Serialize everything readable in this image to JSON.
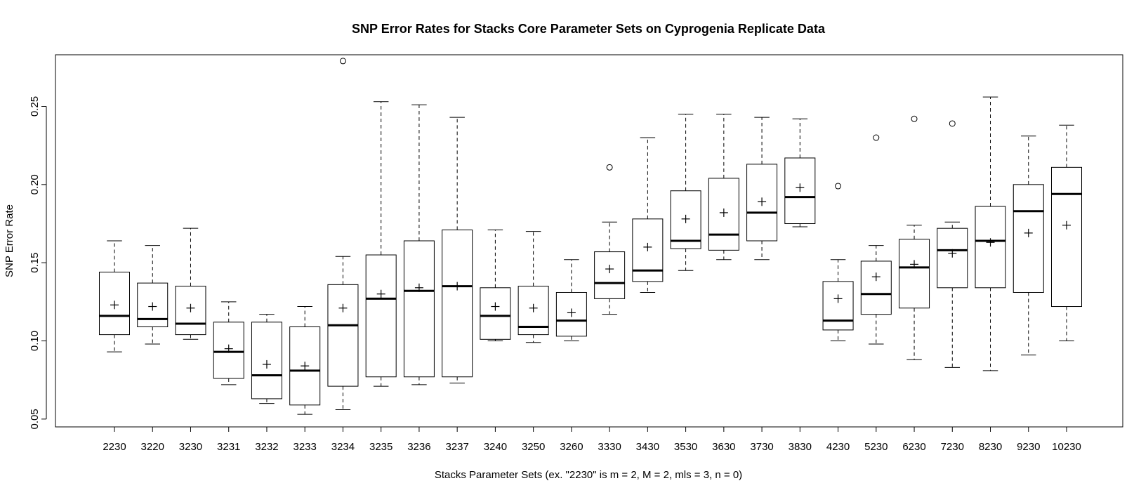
{
  "chart_data": {
    "type": "boxplot",
    "title": "SNP Error Rates for Stacks Core Parameter Sets on Cyprogenia Replicate Data",
    "xlabel": "Stacks Parameter Sets (ex. \"2230\" is m = 2, M = 2, mls = 3, n = 0)",
    "ylabel": "SNP Error Rate",
    "ylim": [
      0.045,
      0.283
    ],
    "yticks": [
      "0.05",
      "0.10",
      "0.15",
      "0.20",
      "0.25"
    ],
    "grid": false,
    "mean_marker": "+",
    "outlier_marker": "open circle",
    "categories": [
      "2230",
      "3220",
      "3230",
      "3231",
      "3232",
      "3233",
      "3234",
      "3235",
      "3236",
      "3237",
      "3240",
      "3250",
      "3260",
      "3330",
      "3430",
      "3530",
      "3630",
      "3730",
      "3830",
      "4230",
      "5230",
      "6230",
      "7230",
      "8230",
      "9230",
      "10230"
    ],
    "boxes": [
      {
        "label": "2230",
        "min": 0.093,
        "q1": 0.104,
        "median": 0.116,
        "q3": 0.144,
        "max": 0.164,
        "mean": 0.123,
        "outliers": []
      },
      {
        "label": "3220",
        "min": 0.098,
        "q1": 0.109,
        "median": 0.114,
        "q3": 0.137,
        "max": 0.161,
        "mean": 0.122,
        "outliers": []
      },
      {
        "label": "3230",
        "min": 0.101,
        "q1": 0.104,
        "median": 0.111,
        "q3": 0.135,
        "max": 0.172,
        "mean": 0.121,
        "outliers": []
      },
      {
        "label": "3231",
        "min": 0.072,
        "q1": 0.076,
        "median": 0.093,
        "q3": 0.112,
        "max": 0.125,
        "mean": 0.095,
        "outliers": []
      },
      {
        "label": "3232",
        "min": 0.06,
        "q1": 0.063,
        "median": 0.078,
        "q3": 0.112,
        "max": 0.117,
        "mean": 0.085,
        "outliers": []
      },
      {
        "label": "3233",
        "min": 0.053,
        "q1": 0.059,
        "median": 0.081,
        "q3": 0.109,
        "max": 0.122,
        "mean": 0.084,
        "outliers": []
      },
      {
        "label": "3234",
        "min": 0.056,
        "q1": 0.071,
        "median": 0.11,
        "q3": 0.136,
        "max": 0.154,
        "mean": 0.121,
        "outliers": [
          0.279
        ]
      },
      {
        "label": "3235",
        "min": 0.071,
        "q1": 0.077,
        "median": 0.127,
        "q3": 0.155,
        "max": 0.253,
        "mean": 0.13,
        "outliers": []
      },
      {
        "label": "3236",
        "min": 0.072,
        "q1": 0.077,
        "median": 0.132,
        "q3": 0.164,
        "max": 0.251,
        "mean": 0.134,
        "outliers": []
      },
      {
        "label": "3237",
        "min": 0.073,
        "q1": 0.077,
        "median": 0.135,
        "q3": 0.171,
        "max": 0.243,
        "mean": 0.135,
        "outliers": []
      },
      {
        "label": "3240",
        "min": 0.1,
        "q1": 0.101,
        "median": 0.116,
        "q3": 0.134,
        "max": 0.171,
        "mean": 0.122,
        "outliers": []
      },
      {
        "label": "3250",
        "min": 0.099,
        "q1": 0.104,
        "median": 0.109,
        "q3": 0.135,
        "max": 0.17,
        "mean": 0.121,
        "outliers": []
      },
      {
        "label": "3260",
        "min": 0.1,
        "q1": 0.103,
        "median": 0.113,
        "q3": 0.131,
        "max": 0.152,
        "mean": 0.118,
        "outliers": []
      },
      {
        "label": "3330",
        "min": 0.117,
        "q1": 0.127,
        "median": 0.137,
        "q3": 0.157,
        "max": 0.176,
        "mean": 0.146,
        "outliers": [
          0.211
        ]
      },
      {
        "label": "3430",
        "min": 0.131,
        "q1": 0.138,
        "median": 0.145,
        "q3": 0.178,
        "max": 0.23,
        "mean": 0.16,
        "outliers": []
      },
      {
        "label": "3530",
        "min": 0.145,
        "q1": 0.159,
        "median": 0.164,
        "q3": 0.196,
        "max": 0.245,
        "mean": 0.178,
        "outliers": []
      },
      {
        "label": "3630",
        "min": 0.152,
        "q1": 0.158,
        "median": 0.168,
        "q3": 0.204,
        "max": 0.245,
        "mean": 0.182,
        "outliers": []
      },
      {
        "label": "3730",
        "min": 0.152,
        "q1": 0.164,
        "median": 0.182,
        "q3": 0.213,
        "max": 0.243,
        "mean": 0.189,
        "outliers": []
      },
      {
        "label": "3830",
        "min": 0.173,
        "q1": 0.175,
        "median": 0.192,
        "q3": 0.217,
        "max": 0.242,
        "mean": 0.198,
        "outliers": []
      },
      {
        "label": "4230",
        "min": 0.1,
        "q1": 0.107,
        "median": 0.113,
        "q3": 0.138,
        "max": 0.152,
        "mean": 0.127,
        "outliers": [
          0.199
        ]
      },
      {
        "label": "5230",
        "min": 0.098,
        "q1": 0.117,
        "median": 0.13,
        "q3": 0.151,
        "max": 0.161,
        "mean": 0.141,
        "outliers": [
          0.23
        ]
      },
      {
        "label": "6230",
        "min": 0.088,
        "q1": 0.121,
        "median": 0.147,
        "q3": 0.165,
        "max": 0.174,
        "mean": 0.149,
        "outliers": [
          0.242
        ]
      },
      {
        "label": "7230",
        "min": 0.083,
        "q1": 0.134,
        "median": 0.158,
        "q3": 0.172,
        "max": 0.176,
        "mean": 0.156,
        "outliers": [
          0.239
        ]
      },
      {
        "label": "8230",
        "min": 0.081,
        "q1": 0.134,
        "median": 0.164,
        "q3": 0.186,
        "max": 0.256,
        "mean": 0.163,
        "outliers": []
      },
      {
        "label": "9230",
        "min": 0.091,
        "q1": 0.131,
        "median": 0.183,
        "q3": 0.2,
        "max": 0.231,
        "mean": 0.169,
        "outliers": []
      },
      {
        "label": "10230",
        "min": 0.1,
        "q1": 0.122,
        "median": 0.194,
        "q3": 0.211,
        "max": 0.238,
        "mean": 0.174,
        "outliers": []
      }
    ]
  }
}
